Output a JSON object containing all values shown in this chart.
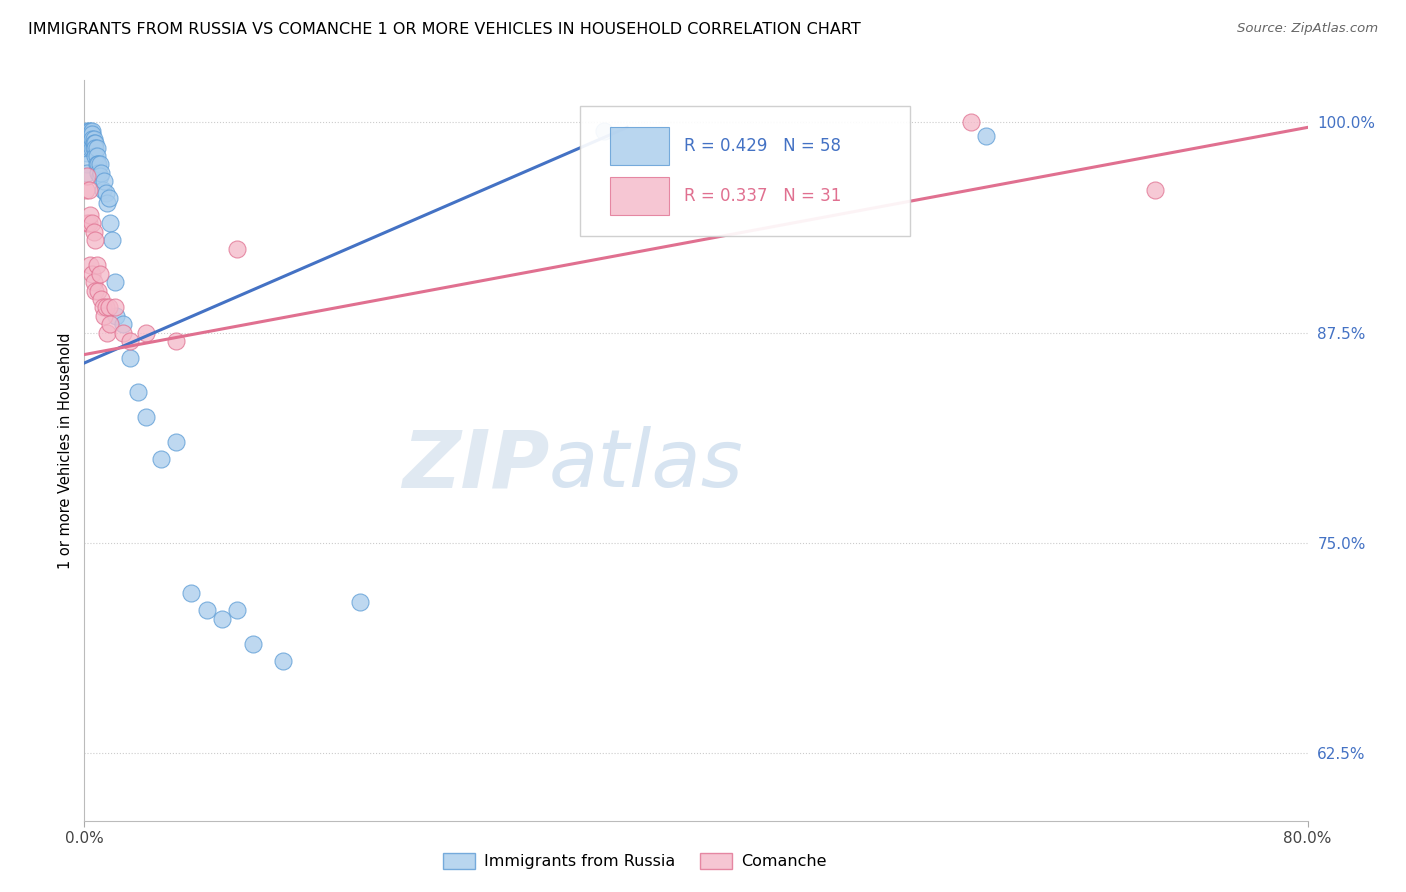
{
  "title": "IMMIGRANTS FROM RUSSIA VS COMANCHE 1 OR MORE VEHICLES IN HOUSEHOLD CORRELATION CHART",
  "source": "Source: ZipAtlas.com",
  "ylabel": "1 or more Vehicles in Household",
  "xlim": [
    0.0,
    0.8
  ],
  "ylim": [
    0.585,
    1.025
  ],
  "ytick_vals": [
    0.625,
    0.75,
    0.875,
    1.0
  ],
  "ytick_labels": [
    "62.5%",
    "75.0%",
    "87.5%",
    "100.0%"
  ],
  "xtick_vals": [
    0.0,
    0.8
  ],
  "xtick_labels": [
    "0.0%",
    "80.0%"
  ],
  "color_blue": "#a8ccec",
  "color_blue_edge": "#5b9bd5",
  "color_pink": "#f4b8c8",
  "color_pink_edge": "#e07090",
  "color_line_blue": "#4472c4",
  "color_line_pink": "#e07090",
  "watermark_zip": "ZIP",
  "watermark_atlas": "atlas",
  "blue_line_x0": 0.0,
  "blue_line_y0": 0.857,
  "blue_line_x1": 0.355,
  "blue_line_y1": 0.997,
  "pink_line_x0": 0.0,
  "pink_line_y0": 0.862,
  "pink_line_x1": 0.8,
  "pink_line_y1": 0.997,
  "blue_x": [
    0.001,
    0.001,
    0.001,
    0.002,
    0.002,
    0.002,
    0.002,
    0.002,
    0.003,
    0.003,
    0.003,
    0.003,
    0.004,
    0.004,
    0.004,
    0.004,
    0.005,
    0.005,
    0.005,
    0.005,
    0.006,
    0.006,
    0.006,
    0.007,
    0.007,
    0.007,
    0.008,
    0.008,
    0.008,
    0.009,
    0.009,
    0.01,
    0.01,
    0.011,
    0.012,
    0.013,
    0.014,
    0.015,
    0.016,
    0.017,
    0.018,
    0.02,
    0.021,
    0.025,
    0.03,
    0.035,
    0.04,
    0.05,
    0.06,
    0.07,
    0.08,
    0.09,
    0.1,
    0.11,
    0.13,
    0.18,
    0.34,
    0.59
  ],
  "blue_y": [
    0.995,
    0.988,
    0.985,
    0.99,
    0.985,
    0.982,
    0.975,
    0.97,
    0.995,
    0.993,
    0.99,
    0.988,
    0.995,
    0.993,
    0.99,
    0.985,
    0.995,
    0.993,
    0.99,
    0.985,
    0.99,
    0.988,
    0.985,
    0.988,
    0.985,
    0.98,
    0.985,
    0.98,
    0.975,
    0.975,
    0.97,
    0.975,
    0.968,
    0.97,
    0.96,
    0.965,
    0.958,
    0.952,
    0.955,
    0.94,
    0.93,
    0.905,
    0.885,
    0.88,
    0.86,
    0.84,
    0.825,
    0.8,
    0.81,
    0.72,
    0.71,
    0.705,
    0.71,
    0.69,
    0.68,
    0.715,
    0.995,
    0.992
  ],
  "pink_x": [
    0.001,
    0.002,
    0.002,
    0.003,
    0.003,
    0.004,
    0.004,
    0.005,
    0.005,
    0.006,
    0.006,
    0.007,
    0.007,
    0.008,
    0.009,
    0.01,
    0.011,
    0.012,
    0.013,
    0.014,
    0.015,
    0.016,
    0.017,
    0.02,
    0.025,
    0.03,
    0.04,
    0.06,
    0.1,
    0.58,
    0.7
  ],
  "pink_y": [
    0.96,
    0.968,
    0.94,
    0.96,
    0.94,
    0.945,
    0.915,
    0.94,
    0.91,
    0.935,
    0.905,
    0.93,
    0.9,
    0.915,
    0.9,
    0.91,
    0.895,
    0.89,
    0.885,
    0.89,
    0.875,
    0.89,
    0.88,
    0.89,
    0.875,
    0.87,
    0.875,
    0.87,
    0.925,
    1.0,
    0.96
  ]
}
